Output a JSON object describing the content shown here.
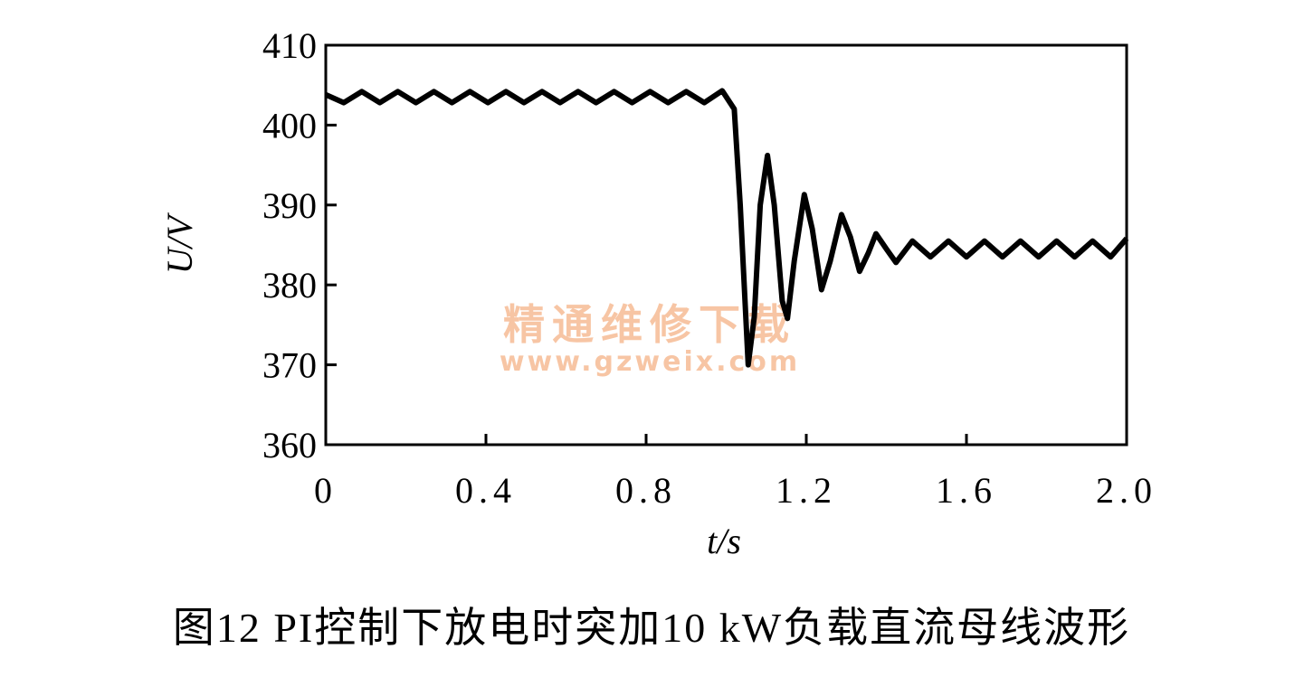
{
  "chart_data": {
    "type": "line",
    "xlabel": "t/s",
    "ylabel": "U/V",
    "caption": "图12 PI控制下放电时突加10 kW负载直流母线波形",
    "watermark": [
      "精通维修下载",
      "www.gzweix.com"
    ],
    "xlim": [
      0,
      2
    ],
    "ylim": [
      360,
      410
    ],
    "xticks": [
      0,
      0.4,
      0.8,
      1.2,
      1.6,
      {
        "value": 2,
        "label": "2.0"
      }
    ],
    "yticks": [
      360,
      370,
      380,
      390,
      400,
      410
    ],
    "series": [
      {
        "color": "#000000",
        "x": [
          0,
          0.045,
          0.09,
          0.135,
          0.18,
          0.225,
          0.27,
          0.315,
          0.36,
          0.405,
          0.45,
          0.495,
          0.54,
          0.585,
          0.63,
          0.675,
          0.72,
          0.765,
          0.81,
          0.855,
          0.9,
          0.945,
          0.99,
          1.02,
          1.035,
          1.055,
          1.07,
          1.085,
          1.103,
          1.12,
          1.14,
          1.153,
          1.17,
          1.195,
          1.215,
          1.238,
          1.26,
          1.288,
          1.31,
          1.333,
          1.355,
          1.374,
          1.4,
          1.424,
          1.465,
          1.51,
          1.555,
          1.6,
          1.645,
          1.69,
          1.735,
          1.78,
          1.825,
          1.87,
          1.915,
          1.96,
          2.0
        ],
        "values": [
          403.8,
          402.8,
          404.2,
          402.8,
          404.2,
          402.8,
          404.2,
          402.8,
          404.2,
          402.8,
          404.2,
          402.8,
          404.2,
          402.8,
          404.2,
          402.8,
          404.2,
          402.8,
          404.2,
          402.8,
          404.2,
          402.8,
          404.3,
          402,
          390,
          370,
          376,
          390,
          396.2,
          390,
          378,
          375.8,
          383,
          391.3,
          387,
          379.4,
          383,
          388.8,
          386,
          381.7,
          384,
          386.4,
          384.5,
          382.8,
          385.5,
          383.5,
          385.5,
          383.5,
          385.5,
          383.5,
          385.5,
          383.5,
          385.5,
          383.5,
          385.5,
          383.5,
          385.8
        ]
      }
    ]
  }
}
